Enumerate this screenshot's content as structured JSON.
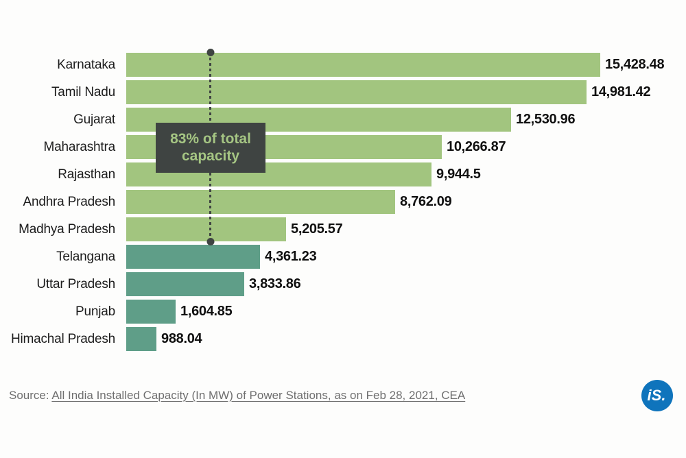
{
  "chart_data": {
    "type": "bar",
    "orientation": "horizontal",
    "title": "",
    "xlabel": "",
    "ylabel": "",
    "unit": "MW",
    "xlim": [
      0,
      15428.48
    ],
    "grid": false,
    "legend": false,
    "categories": [
      "Karnataka",
      "Tamil Nadu",
      "Gujarat",
      "Maharashtra",
      "Rajasthan",
      "Andhra Pradesh",
      "Madhya Pradesh",
      "Telangana",
      "Uttar Pradesh",
      "Punjab",
      "Himachal Pradesh"
    ],
    "values": [
      15428.48,
      14981.42,
      12530.96,
      10266.87,
      9944.5,
      8762.09,
      5205.57,
      4361.23,
      3833.86,
      1604.85,
      988.04
    ],
    "colors": {
      "light": "#a2c57f",
      "teal": "#5f9e88"
    },
    "bars": [
      {
        "state": "Karnataka",
        "value": 15428.48,
        "label": "15,428.48",
        "group": "light"
      },
      {
        "state": "Tamil Nadu",
        "value": 14981.42,
        "label": "14,981.42",
        "group": "light"
      },
      {
        "state": "Gujarat",
        "value": 12530.96,
        "label": "12,530.96",
        "group": "light"
      },
      {
        "state": "Maharashtra",
        "value": 10266.87,
        "label": "10,266.87",
        "group": "light"
      },
      {
        "state": "Rajasthan",
        "value": 9944.5,
        "label": "9,944.5",
        "group": "light"
      },
      {
        "state": "Andhra Pradesh",
        "value": 8762.09,
        "label": "8,762.09",
        "group": "light"
      },
      {
        "state": "Madhya Pradesh",
        "value": 5205.57,
        "label": "5,205.57",
        "group": "light"
      },
      {
        "state": "Telangana",
        "value": 4361.23,
        "label": "4,361.23",
        "group": "teal"
      },
      {
        "state": "Uttar Pradesh",
        "value": 3833.86,
        "label": "3,833.86",
        "group": "teal"
      },
      {
        "state": "Punjab",
        "value": 1604.85,
        "label": "1,604.85",
        "group": "teal"
      },
      {
        "state": "Himachal Pradesh",
        "value": 988.04,
        "label": "988.04",
        "group": "teal"
      }
    ],
    "annotation": {
      "lines": [
        "83% of total",
        "capacity"
      ],
      "box_color": "#3f4442",
      "text_color": "#a5c583",
      "line_color": "#3f4442"
    }
  },
  "source": {
    "prefix": "Source: ",
    "link_text": "All India Installed Capacity (In MW) of Power Stations, as on Feb 28, 2021, CEA"
  },
  "logo": {
    "text": "iS.",
    "color": "#0f74bc"
  }
}
